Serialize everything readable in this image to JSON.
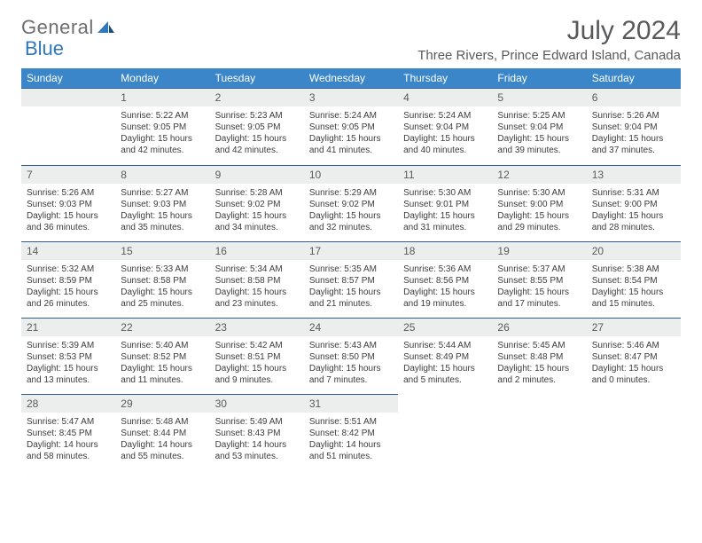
{
  "logo": {
    "text1": "General",
    "text2": "Blue"
  },
  "title": "July 2024",
  "location": "Three Rivers, Prince Edward Island, Canada",
  "colors": {
    "header_bg": "#3a86c8",
    "header_text": "#ffffff",
    "daynum_bg": "#eceded",
    "daynum_border": "#2f5e8c",
    "body_text": "#3c3c3c",
    "title_text": "#58595b",
    "logo_gray": "#6d6e71",
    "logo_blue": "#2f78bd"
  },
  "weekdays": [
    "Sunday",
    "Monday",
    "Tuesday",
    "Wednesday",
    "Thursday",
    "Friday",
    "Saturday"
  ],
  "weeks": [
    [
      null,
      {
        "n": "1",
        "sr": "5:22 AM",
        "ss": "9:05 PM",
        "dl": "15 hours and 42 minutes."
      },
      {
        "n": "2",
        "sr": "5:23 AM",
        "ss": "9:05 PM",
        "dl": "15 hours and 42 minutes."
      },
      {
        "n": "3",
        "sr": "5:24 AM",
        "ss": "9:05 PM",
        "dl": "15 hours and 41 minutes."
      },
      {
        "n": "4",
        "sr": "5:24 AM",
        "ss": "9:04 PM",
        "dl": "15 hours and 40 minutes."
      },
      {
        "n": "5",
        "sr": "5:25 AM",
        "ss": "9:04 PM",
        "dl": "15 hours and 39 minutes."
      },
      {
        "n": "6",
        "sr": "5:26 AM",
        "ss": "9:04 PM",
        "dl": "15 hours and 37 minutes."
      }
    ],
    [
      {
        "n": "7",
        "sr": "5:26 AM",
        "ss": "9:03 PM",
        "dl": "15 hours and 36 minutes."
      },
      {
        "n": "8",
        "sr": "5:27 AM",
        "ss": "9:03 PM",
        "dl": "15 hours and 35 minutes."
      },
      {
        "n": "9",
        "sr": "5:28 AM",
        "ss": "9:02 PM",
        "dl": "15 hours and 34 minutes."
      },
      {
        "n": "10",
        "sr": "5:29 AM",
        "ss": "9:02 PM",
        "dl": "15 hours and 32 minutes."
      },
      {
        "n": "11",
        "sr": "5:30 AM",
        "ss": "9:01 PM",
        "dl": "15 hours and 31 minutes."
      },
      {
        "n": "12",
        "sr": "5:30 AM",
        "ss": "9:00 PM",
        "dl": "15 hours and 29 minutes."
      },
      {
        "n": "13",
        "sr": "5:31 AM",
        "ss": "9:00 PM",
        "dl": "15 hours and 28 minutes."
      }
    ],
    [
      {
        "n": "14",
        "sr": "5:32 AM",
        "ss": "8:59 PM",
        "dl": "15 hours and 26 minutes."
      },
      {
        "n": "15",
        "sr": "5:33 AM",
        "ss": "8:58 PM",
        "dl": "15 hours and 25 minutes."
      },
      {
        "n": "16",
        "sr": "5:34 AM",
        "ss": "8:58 PM",
        "dl": "15 hours and 23 minutes."
      },
      {
        "n": "17",
        "sr": "5:35 AM",
        "ss": "8:57 PM",
        "dl": "15 hours and 21 minutes."
      },
      {
        "n": "18",
        "sr": "5:36 AM",
        "ss": "8:56 PM",
        "dl": "15 hours and 19 minutes."
      },
      {
        "n": "19",
        "sr": "5:37 AM",
        "ss": "8:55 PM",
        "dl": "15 hours and 17 minutes."
      },
      {
        "n": "20",
        "sr": "5:38 AM",
        "ss": "8:54 PM",
        "dl": "15 hours and 15 minutes."
      }
    ],
    [
      {
        "n": "21",
        "sr": "5:39 AM",
        "ss": "8:53 PM",
        "dl": "15 hours and 13 minutes."
      },
      {
        "n": "22",
        "sr": "5:40 AM",
        "ss": "8:52 PM",
        "dl": "15 hours and 11 minutes."
      },
      {
        "n": "23",
        "sr": "5:42 AM",
        "ss": "8:51 PM",
        "dl": "15 hours and 9 minutes."
      },
      {
        "n": "24",
        "sr": "5:43 AM",
        "ss": "8:50 PM",
        "dl": "15 hours and 7 minutes."
      },
      {
        "n": "25",
        "sr": "5:44 AM",
        "ss": "8:49 PM",
        "dl": "15 hours and 5 minutes."
      },
      {
        "n": "26",
        "sr": "5:45 AM",
        "ss": "8:48 PM",
        "dl": "15 hours and 2 minutes."
      },
      {
        "n": "27",
        "sr": "5:46 AM",
        "ss": "8:47 PM",
        "dl": "15 hours and 0 minutes."
      }
    ],
    [
      {
        "n": "28",
        "sr": "5:47 AM",
        "ss": "8:45 PM",
        "dl": "14 hours and 58 minutes."
      },
      {
        "n": "29",
        "sr": "5:48 AM",
        "ss": "8:44 PM",
        "dl": "14 hours and 55 minutes."
      },
      {
        "n": "30",
        "sr": "5:49 AM",
        "ss": "8:43 PM",
        "dl": "14 hours and 53 minutes."
      },
      {
        "n": "31",
        "sr": "5:51 AM",
        "ss": "8:42 PM",
        "dl": "14 hours and 51 minutes."
      },
      null,
      null,
      null
    ]
  ],
  "labels": {
    "sunrise": "Sunrise:",
    "sunset": "Sunset:",
    "daylight": "Daylight:"
  }
}
